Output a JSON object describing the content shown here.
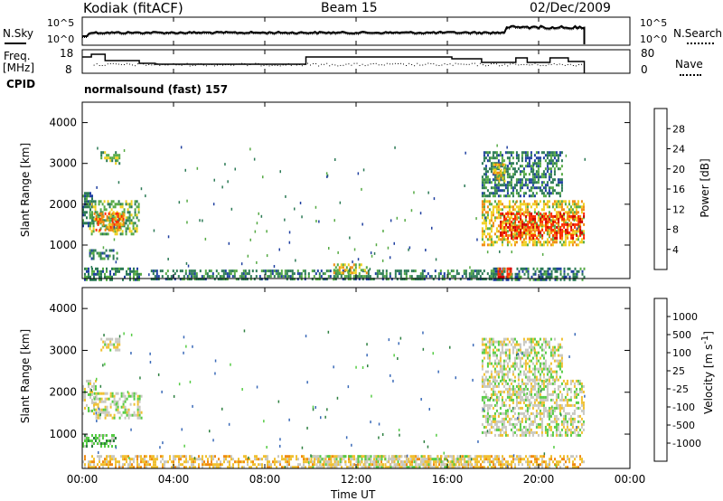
{
  "header": {
    "station": "Kodiak (fitACF)",
    "beam": "Beam 15",
    "date": "02/Dec/2009"
  },
  "noise_panel": {
    "left_label": "N.Sky",
    "right_label": "N.Search",
    "left_ticks": [
      "10^5",
      "10^0"
    ],
    "right_ticks": [
      "10^5",
      "10^0"
    ]
  },
  "freq_panel": {
    "left_label_1": "Freq.",
    "left_label_2": "[MHz]",
    "right_label": "Nave",
    "left_ticks": [
      "18",
      "8"
    ],
    "right_ticks": [
      "80",
      "0"
    ]
  },
  "cpid": {
    "label": "CPID",
    "text": "normalsound (fast) 157"
  },
  "chart_data": [
    {
      "type": "heatmap",
      "name": "power",
      "ylabel": "Slant Range [km]",
      "ylim": [
        180,
        4500
      ],
      "yticks": [
        1000,
        2000,
        3000,
        4000
      ],
      "xlim_hours": [
        0,
        24
      ],
      "data_extent_hours": [
        0,
        22
      ],
      "colorbar": {
        "label": "Power [dB]",
        "ticks": [
          "4",
          "8",
          "12",
          "16",
          "20",
          "24",
          "28"
        ],
        "colors": [
          "#0000e0",
          "#1f3fa0",
          "#2b7a55",
          "#55aa44",
          "#f0d020",
          "#f08a10",
          "#ff2a00",
          "#d00000"
        ]
      },
      "regions": [
        {
          "t0": 0.0,
          "t1": 2.6,
          "r0": 180,
          "r1": 450,
          "level": 2
        },
        {
          "t0": 0.0,
          "t1": 0.4,
          "r0": 1500,
          "r1": 2300,
          "level": 2
        },
        {
          "t0": 0.3,
          "t1": 2.5,
          "r0": 1300,
          "r1": 2100,
          "level": 3
        },
        {
          "t0": 0.5,
          "t1": 1.8,
          "r0": 1400,
          "r1": 1800,
          "level": 5
        },
        {
          "t0": 0.8,
          "t1": 1.6,
          "r0": 3000,
          "r1": 3300,
          "level": 3
        },
        {
          "t0": 0.3,
          "t1": 1.5,
          "r0": 700,
          "r1": 900,
          "level": 2
        },
        {
          "t0": 3.0,
          "t1": 18.0,
          "r0": 180,
          "r1": 400,
          "level": 2
        },
        {
          "t0": 11.0,
          "t1": 12.5,
          "r0": 350,
          "r1": 550,
          "level": 4
        },
        {
          "t0": 17.5,
          "t1": 22.0,
          "r0": 1000,
          "r1": 2100,
          "level": 4
        },
        {
          "t0": 18.3,
          "t1": 22.0,
          "r0": 1200,
          "r1": 1800,
          "level": 6
        },
        {
          "t0": 17.5,
          "t1": 21.0,
          "r0": 2200,
          "r1": 3300,
          "level": 2
        },
        {
          "t0": 18.0,
          "t1": 18.5,
          "r0": 2600,
          "r1": 3000,
          "level": 4
        },
        {
          "t0": 18.0,
          "t1": 22.0,
          "r0": 180,
          "r1": 450,
          "level": 2
        },
        {
          "t0": 18.2,
          "t1": 18.8,
          "r0": 250,
          "r1": 450,
          "level": 6
        }
      ]
    },
    {
      "type": "heatmap",
      "name": "velocity",
      "ylabel": "Slant Range [km]",
      "ylim": [
        180,
        4500
      ],
      "yticks": [
        1000,
        2000,
        3000,
        4000
      ],
      "xlim_hours": [
        0,
        24
      ],
      "data_extent_hours": [
        0,
        22
      ],
      "colorbar": {
        "label": "Velocity [m s-1]",
        "ticks": [
          "1000",
          "500",
          "100",
          "25",
          "-25",
          "-100",
          "-500",
          "-1000"
        ],
        "colors": [
          "#2040b0",
          "#3a6ab8",
          "#2d8040",
          "#55cc44",
          "#c8c8c0",
          "#f0c030",
          "#f08a10",
          "#ff4010",
          "#e00000"
        ]
      },
      "regions": [
        {
          "t0": 0.0,
          "t1": 0.6,
          "r0": 1500,
          "r1": 2300,
          "level": 4
        },
        {
          "t0": 0.5,
          "t1": 2.6,
          "r0": 1400,
          "r1": 2000,
          "level": 4
        },
        {
          "t0": 0.8,
          "t1": 1.6,
          "r0": 3000,
          "r1": 3300,
          "level": 4
        },
        {
          "t0": 0.0,
          "t1": 1.5,
          "r0": 700,
          "r1": 1000,
          "level": 3
        },
        {
          "t0": 0.0,
          "t1": 22.0,
          "r0": 180,
          "r1": 500,
          "level": 5
        },
        {
          "t0": 10.0,
          "t1": 17.0,
          "r0": 200,
          "r1": 500,
          "level": 4
        },
        {
          "t0": 17.5,
          "t1": 22.0,
          "r0": 1000,
          "r1": 2300,
          "level": 4
        },
        {
          "t0": 17.5,
          "t1": 21.0,
          "r0": 2300,
          "r1": 3300,
          "level": 4
        }
      ]
    }
  ],
  "x_axis": {
    "ticks": [
      "00:00",
      "04:00",
      "08:00",
      "12:00",
      "16:00",
      "20:00",
      "00:00"
    ],
    "label": "Time UT"
  }
}
